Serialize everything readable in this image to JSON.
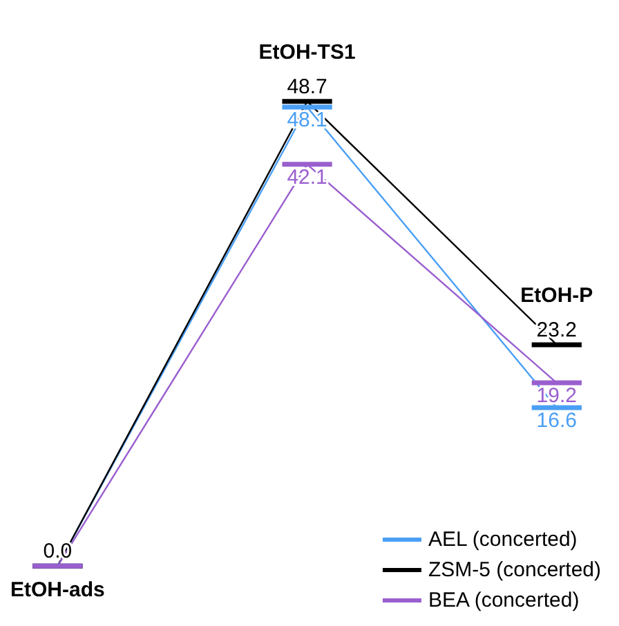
{
  "chart_data": {
    "type": "line",
    "categories": [
      "EtOH-ads",
      "EtOH-TS1",
      "EtOH-P"
    ],
    "series": [
      {
        "name": "AEL (concerted)",
        "color": "#4a9ff5",
        "values": [
          0.0,
          48.1,
          16.6
        ],
        "value_labels": [
          null,
          "48.1",
          "16.6"
        ]
      },
      {
        "name": "ZSM-5 (concerted)",
        "color": "#000000",
        "values": [
          0.0,
          48.7,
          23.2
        ],
        "value_labels": [
          "0.0",
          "48.7",
          "23.2"
        ]
      },
      {
        "name": "BEA (concerted)",
        "color": "#9a5fcf",
        "values": [
          0.0,
          42.1,
          19.2
        ],
        "value_labels": [
          null,
          "42.1",
          "19.2"
        ]
      }
    ],
    "legend": "bottom right"
  }
}
